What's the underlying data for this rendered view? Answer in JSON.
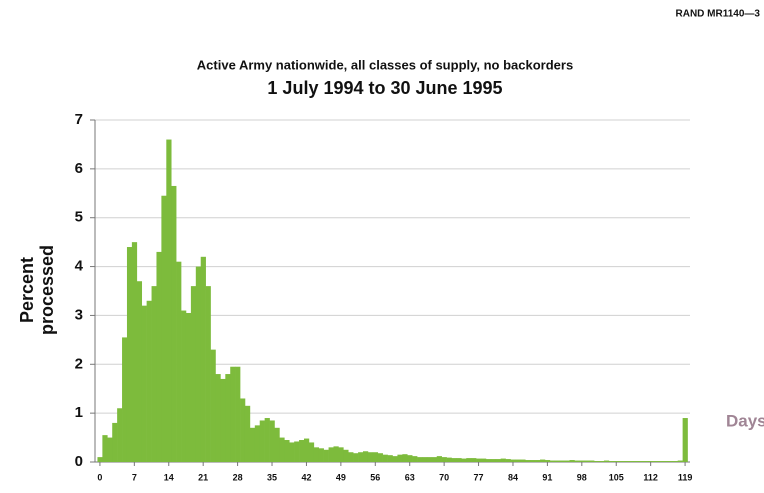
{
  "chart_data": {
    "type": "bar",
    "header": "RAND MR1140—3",
    "title": "Active Army nationwide, all classes of supply, no backorders",
    "subtitle": "1 July 1994 to 30 June 1995",
    "ylabel": "Percent processed",
    "xlabel": "Days",
    "color": "#7dbb3c",
    "grid": true,
    "x": [
      0,
      1,
      2,
      3,
      4,
      5,
      6,
      7,
      8,
      9,
      10,
      11,
      12,
      13,
      14,
      15,
      16,
      17,
      18,
      19,
      20,
      21,
      22,
      23,
      24,
      25,
      26,
      27,
      28,
      29,
      30,
      31,
      32,
      33,
      34,
      35,
      36,
      37,
      38,
      39,
      40,
      41,
      42,
      43,
      44,
      45,
      46,
      47,
      48,
      49,
      50,
      51,
      52,
      53,
      54,
      55,
      56,
      57,
      58,
      59,
      60,
      61,
      62,
      63,
      64,
      65,
      66,
      67,
      68,
      69,
      70,
      71,
      72,
      73,
      74,
      75,
      76,
      77,
      78,
      79,
      80,
      81,
      82,
      83,
      84,
      85,
      86,
      87,
      88,
      89,
      90,
      91,
      92,
      93,
      94,
      95,
      96,
      97,
      98,
      99,
      100,
      101,
      102,
      103,
      104,
      105,
      106,
      107,
      108,
      109,
      110,
      111,
      112,
      113,
      114,
      115,
      116,
      117,
      118,
      119
    ],
    "values": [
      0.1,
      0.55,
      0.5,
      0.8,
      1.1,
      2.55,
      4.4,
      4.5,
      3.7,
      3.2,
      3.3,
      3.6,
      4.3,
      5.45,
      6.6,
      5.65,
      4.1,
      3.1,
      3.05,
      3.6,
      4.0,
      4.2,
      3.6,
      2.3,
      1.8,
      1.7,
      1.8,
      1.95,
      1.95,
      1.3,
      1.15,
      0.7,
      0.75,
      0.85,
      0.9,
      0.85,
      0.7,
      0.5,
      0.45,
      0.4,
      0.42,
      0.45,
      0.48,
      0.4,
      0.3,
      0.28,
      0.25,
      0.3,
      0.32,
      0.3,
      0.25,
      0.2,
      0.18,
      0.2,
      0.22,
      0.2,
      0.2,
      0.18,
      0.15,
      0.14,
      0.12,
      0.15,
      0.16,
      0.14,
      0.12,
      0.1,
      0.1,
      0.1,
      0.1,
      0.12,
      0.1,
      0.09,
      0.08,
      0.08,
      0.07,
      0.08,
      0.08,
      0.07,
      0.07,
      0.06,
      0.06,
      0.06,
      0.07,
      0.06,
      0.05,
      0.05,
      0.05,
      0.04,
      0.04,
      0.04,
      0.05,
      0.04,
      0.03,
      0.03,
      0.03,
      0.03,
      0.04,
      0.03,
      0.03,
      0.03,
      0.03,
      0.02,
      0.02,
      0.03,
      0.02,
      0.02,
      0.02,
      0.02,
      0.02,
      0.02,
      0.02,
      0.02,
      0.02,
      0.02,
      0.02,
      0.02,
      0.02,
      0.02,
      0.03,
      0.9
    ],
    "xlim": [
      -1,
      120
    ],
    "xticks": [
      0,
      7,
      14,
      21,
      28,
      35,
      42,
      49,
      56,
      63,
      70,
      77,
      84,
      91,
      98,
      105,
      112,
      119
    ],
    "ylim": [
      0,
      7
    ],
    "yticks": [
      0,
      1,
      2,
      3,
      4,
      5,
      6,
      7
    ]
  }
}
